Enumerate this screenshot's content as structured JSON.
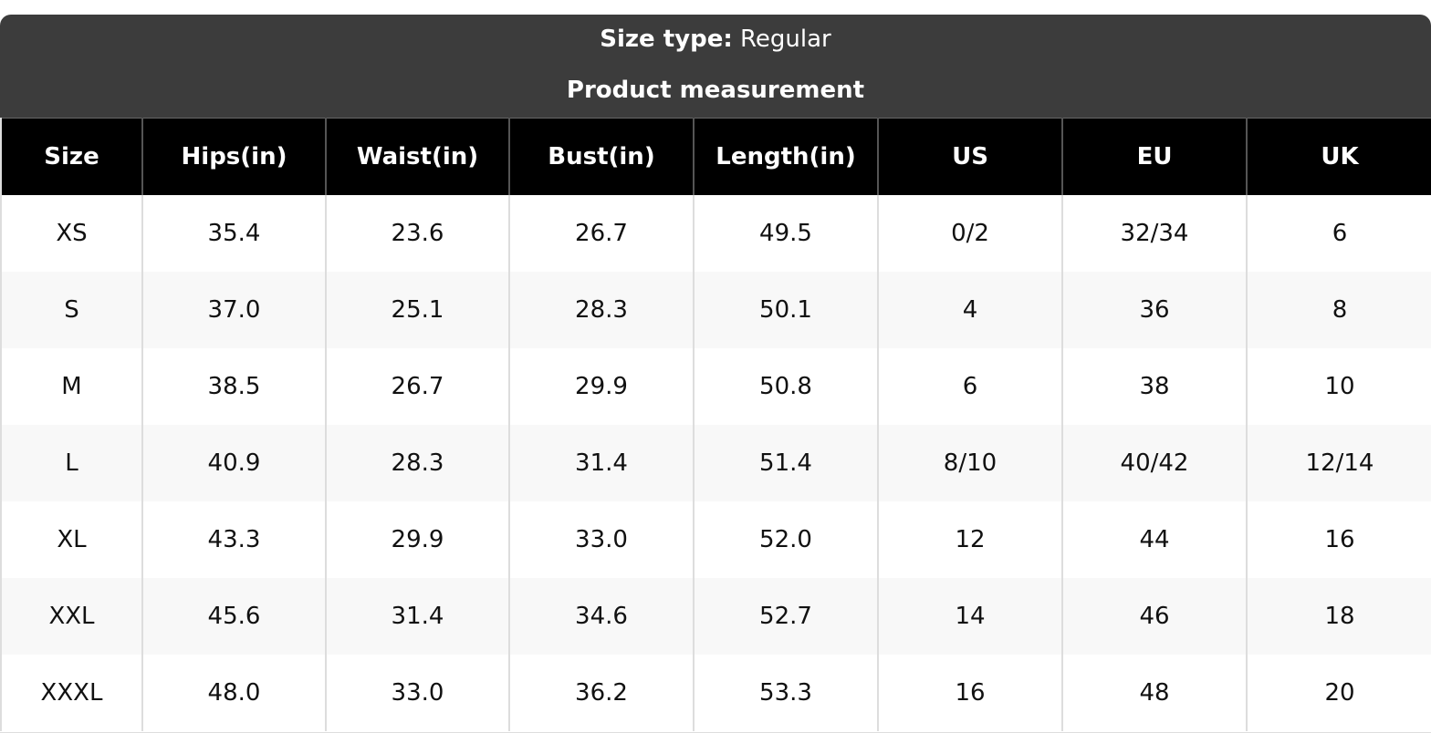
{
  "header": {
    "size_type_label": "Size type:",
    "size_type_value": "Regular",
    "subtitle": "Product measurement"
  },
  "table": {
    "columns": [
      "Size",
      "Hips(in)",
      "Waist(in)",
      "Bust(in)",
      "Length(in)",
      "US",
      "EU",
      "UK"
    ],
    "rows": [
      [
        "XS",
        "35.4",
        "23.6",
        "26.7",
        "49.5",
        "0/2",
        "32/34",
        "6"
      ],
      [
        "S",
        "37.0",
        "25.1",
        "28.3",
        "50.1",
        "4",
        "36",
        "8"
      ],
      [
        "M",
        "38.5",
        "26.7",
        "29.9",
        "50.8",
        "6",
        "38",
        "10"
      ],
      [
        "L",
        "40.9",
        "28.3",
        "31.4",
        "51.4",
        "8/10",
        "40/42",
        "12/14"
      ],
      [
        "XL",
        "43.3",
        "29.9",
        "33.0",
        "52.0",
        "12",
        "44",
        "16"
      ],
      [
        "XXL",
        "45.6",
        "31.4",
        "34.6",
        "52.7",
        "14",
        "46",
        "18"
      ],
      [
        "XXXL",
        "48.0",
        "33.0",
        "36.2",
        "53.3",
        "16",
        "48",
        "20"
      ]
    ]
  }
}
